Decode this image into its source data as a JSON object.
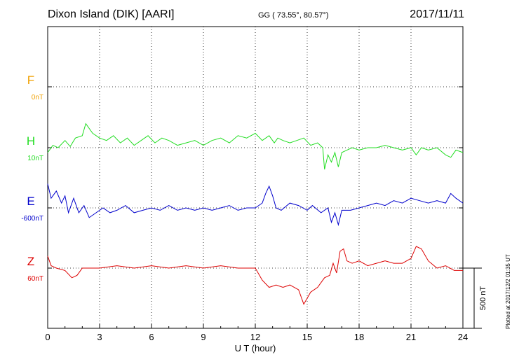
{
  "header": {
    "station": "Dixon Island (DIK)  [AARI]",
    "coords": "GG ( 73.55°,  80.57°)",
    "date": "2017/11/11"
  },
  "plotted_note": "Plotted at 2017/12/2 01:35 UT",
  "chart_data": {
    "type": "line",
    "title": "Dixon Island (DIK)  [AARI]",
    "xlabel": "U T (hour)",
    "xlim": [
      0,
      24
    ],
    "xticks": [
      "0",
      "3",
      "6",
      "9",
      "12",
      "15",
      "18",
      "21",
      "24"
    ],
    "grid": true,
    "scale_bar_label": "500 nT",
    "series": [
      {
        "name": "F",
        "baseline": "0nT",
        "color": "#f0a000",
        "x": [],
        "y": []
      },
      {
        "name": "H",
        "baseline": "10nT",
        "color": "#22dd22",
        "x": [
          0,
          0.3,
          0.6,
          1.0,
          1.3,
          1.6,
          2.0,
          2.2,
          2.6,
          3.0,
          3.4,
          3.8,
          4.2,
          4.6,
          5.0,
          5.4,
          5.8,
          6.2,
          6.6,
          7.0,
          7.5,
          8.0,
          8.5,
          9.0,
          9.5,
          10.0,
          10.5,
          11.0,
          11.5,
          12.0,
          12.4,
          12.8,
          13.1,
          13.3,
          13.6,
          14.0,
          14.4,
          14.8,
          15.2,
          15.6,
          15.9,
          16.0,
          16.2,
          16.4,
          16.6,
          16.8,
          17.0,
          17.3,
          17.6,
          18.0,
          18.5,
          19.0,
          19.5,
          20.0,
          20.5,
          21.0,
          21.3,
          21.6,
          22.0,
          22.5,
          23.0,
          23.3,
          23.6,
          24.0
        ],
        "y": [
          -40,
          20,
          0,
          60,
          10,
          80,
          100,
          200,
          120,
          80,
          60,
          100,
          40,
          80,
          20,
          60,
          100,
          40,
          80,
          60,
          20,
          40,
          60,
          20,
          60,
          80,
          40,
          100,
          80,
          120,
          60,
          100,
          40,
          80,
          60,
          40,
          60,
          80,
          20,
          40,
          0,
          -180,
          -60,
          -120,
          -40,
          -160,
          -40,
          -20,
          0,
          -20,
          0,
          0,
          20,
          0,
          -20,
          0,
          -60,
          0,
          -20,
          0,
          -60,
          -80,
          -20,
          -40
        ]
      },
      {
        "name": "E",
        "baseline": "-600nT",
        "color": "#0000cc",
        "x": [
          0,
          0.2,
          0.5,
          0.8,
          1.0,
          1.2,
          1.5,
          1.8,
          2.1,
          2.4,
          2.8,
          3.2,
          3.6,
          4.0,
          4.5,
          5.0,
          5.5,
          6.0,
          6.5,
          7.0,
          7.5,
          8.0,
          8.5,
          9.0,
          9.5,
          10.0,
          10.5,
          11.0,
          11.5,
          12.0,
          12.4,
          12.6,
          12.8,
          13.0,
          13.2,
          13.5,
          14.0,
          14.5,
          15.0,
          15.3,
          15.8,
          16.2,
          16.4,
          16.6,
          16.8,
          17.0,
          17.5,
          18.0,
          18.5,
          19.0,
          19.5,
          20.0,
          20.5,
          21.0,
          21.5,
          22.0,
          22.5,
          23.0,
          23.3,
          23.6,
          24.0
        ],
        "y": [
          200,
          80,
          140,
          40,
          100,
          -40,
          80,
          -40,
          20,
          -80,
          -40,
          0,
          -40,
          -20,
          20,
          -40,
          -20,
          0,
          -20,
          20,
          -20,
          0,
          -20,
          0,
          -20,
          0,
          20,
          -20,
          0,
          0,
          40,
          120,
          180,
          100,
          0,
          -20,
          40,
          20,
          -20,
          20,
          -40,
          0,
          -120,
          -40,
          -140,
          -20,
          -20,
          0,
          20,
          40,
          20,
          60,
          40,
          80,
          60,
          40,
          60,
          40,
          120,
          80,
          40
        ]
      },
      {
        "name": "Z",
        "baseline": "60nT",
        "color": "#dd0000",
        "x": [
          0,
          0.2,
          0.5,
          1.0,
          1.4,
          1.7,
          2.0,
          3.0,
          4.0,
          5.0,
          6.0,
          7.0,
          8.0,
          9.0,
          10.0,
          11.0,
          12.0,
          12.4,
          12.8,
          13.2,
          13.6,
          14.0,
          14.5,
          14.8,
          15.2,
          15.6,
          16.0,
          16.3,
          16.5,
          16.7,
          16.9,
          17.1,
          17.3,
          17.6,
          18.0,
          18.5,
          19.0,
          19.5,
          20.0,
          20.5,
          21.0,
          21.3,
          21.6,
          22.0,
          22.5,
          23.0,
          23.5,
          24.0
        ],
        "y": [
          100,
          20,
          0,
          -20,
          -80,
          -60,
          0,
          0,
          20,
          0,
          20,
          0,
          20,
          0,
          20,
          0,
          0,
          -100,
          -160,
          -140,
          -160,
          -140,
          -180,
          -300,
          -200,
          -160,
          -80,
          -60,
          40,
          -40,
          140,
          160,
          60,
          40,
          60,
          20,
          40,
          60,
          40,
          40,
          80,
          180,
          160,
          60,
          0,
          20,
          -20,
          -20
        ]
      }
    ]
  }
}
